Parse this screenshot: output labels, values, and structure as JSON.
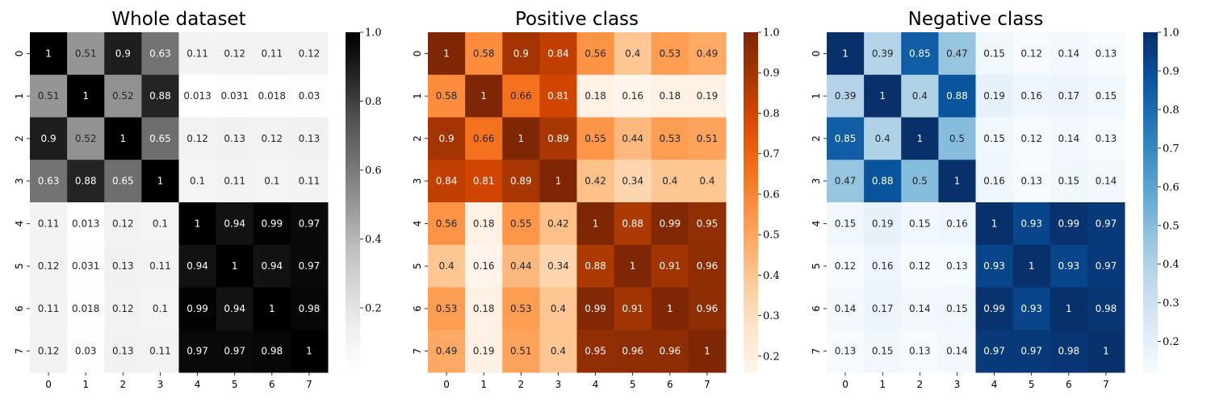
{
  "chart_data": [
    {
      "type": "heatmap",
      "title": "Whole dataset",
      "colormap": "Greys",
      "x_categories": [
        "0",
        "1",
        "2",
        "3",
        "4",
        "5",
        "6",
        "7"
      ],
      "y_categories": [
        "0",
        "1",
        "2",
        "3",
        "4",
        "5",
        "6",
        "7"
      ],
      "vmin": 0.013,
      "vmax": 1.0,
      "colorbar_ticks": [
        0.2,
        0.4,
        0.6,
        0.8,
        1.0
      ],
      "colorbar_tick_labels": [
        "0.2",
        "0.4",
        "0.6",
        "0.8",
        "1.0"
      ],
      "values": [
        [
          1,
          0.51,
          0.9,
          0.63,
          0.11,
          0.12,
          0.11,
          0.12
        ],
        [
          0.51,
          1,
          0.52,
          0.88,
          0.013,
          0.031,
          0.018,
          0.03
        ],
        [
          0.9,
          0.52,
          1,
          0.65,
          0.12,
          0.13,
          0.12,
          0.13
        ],
        [
          0.63,
          0.88,
          0.65,
          1,
          0.1,
          0.11,
          0.1,
          0.11
        ],
        [
          0.11,
          0.013,
          0.12,
          0.1,
          1,
          0.94,
          0.99,
          0.97
        ],
        [
          0.12,
          0.031,
          0.13,
          0.11,
          0.94,
          1,
          0.94,
          0.97
        ],
        [
          0.11,
          0.018,
          0.12,
          0.1,
          0.99,
          0.94,
          1,
          0.98
        ],
        [
          0.12,
          0.03,
          0.13,
          0.11,
          0.97,
          0.97,
          0.98,
          1
        ]
      ],
      "value_labels": [
        [
          "1",
          "0.51",
          "0.9",
          "0.63",
          "0.11",
          "0.12",
          "0.11",
          "0.12"
        ],
        [
          "0.51",
          "1",
          "0.52",
          "0.88",
          "0.013",
          "0.031",
          "0.018",
          "0.03"
        ],
        [
          "0.9",
          "0.52",
          "1",
          "0.65",
          "0.12",
          "0.13",
          "0.12",
          "0.13"
        ],
        [
          "0.63",
          "0.88",
          "0.65",
          "1",
          "0.1",
          "0.11",
          "0.1",
          "0.11"
        ],
        [
          "0.11",
          "0.013",
          "0.12",
          "0.1",
          "1",
          "0.94",
          "0.99",
          "0.97"
        ],
        [
          "0.12",
          "0.031",
          "0.13",
          "0.11",
          "0.94",
          "1",
          "0.94",
          "0.97"
        ],
        [
          "0.11",
          "0.018",
          "0.12",
          "0.1",
          "0.99",
          "0.94",
          "1",
          "0.98"
        ],
        [
          "0.12",
          "0.03",
          "0.13",
          "0.11",
          "0.97",
          "0.97",
          "0.98",
          "1"
        ]
      ]
    },
    {
      "type": "heatmap",
      "title": "Positive class",
      "colormap": "Oranges",
      "x_categories": [
        "0",
        "1",
        "2",
        "3",
        "4",
        "5",
        "6",
        "7"
      ],
      "y_categories": [
        "0",
        "1",
        "2",
        "3",
        "4",
        "5",
        "6",
        "7"
      ],
      "vmin": 0.16,
      "vmax": 1.0,
      "colorbar_ticks": [
        0.2,
        0.3,
        0.4,
        0.5,
        0.6,
        0.7,
        0.8,
        0.9,
        1.0
      ],
      "colorbar_tick_labels": [
        "0.2",
        "0.3",
        "0.4",
        "0.5",
        "0.6",
        "0.7",
        "0.8",
        "0.9",
        "1.0"
      ],
      "values": [
        [
          1,
          0.58,
          0.9,
          0.84,
          0.56,
          0.4,
          0.53,
          0.49
        ],
        [
          0.58,
          1,
          0.66,
          0.81,
          0.18,
          0.16,
          0.18,
          0.19
        ],
        [
          0.9,
          0.66,
          1,
          0.89,
          0.55,
          0.44,
          0.53,
          0.51
        ],
        [
          0.84,
          0.81,
          0.89,
          1,
          0.42,
          0.34,
          0.4,
          0.4
        ],
        [
          0.56,
          0.18,
          0.55,
          0.42,
          1,
          0.88,
          0.99,
          0.95
        ],
        [
          0.4,
          0.16,
          0.44,
          0.34,
          0.88,
          1,
          0.91,
          0.96
        ],
        [
          0.53,
          0.18,
          0.53,
          0.4,
          0.99,
          0.91,
          1,
          0.96
        ],
        [
          0.49,
          0.19,
          0.51,
          0.4,
          0.95,
          0.96,
          0.96,
          1
        ]
      ],
      "value_labels": [
        [
          "1",
          "0.58",
          "0.9",
          "0.84",
          "0.56",
          "0.4",
          "0.53",
          "0.49"
        ],
        [
          "0.58",
          "1",
          "0.66",
          "0.81",
          "0.18",
          "0.16",
          "0.18",
          "0.19"
        ],
        [
          "0.9",
          "0.66",
          "1",
          "0.89",
          "0.55",
          "0.44",
          "0.53",
          "0.51"
        ],
        [
          "0.84",
          "0.81",
          "0.89",
          "1",
          "0.42",
          "0.34",
          "0.4",
          "0.4"
        ],
        [
          "0.56",
          "0.18",
          "0.55",
          "0.42",
          "1",
          "0.88",
          "0.99",
          "0.95"
        ],
        [
          "0.4",
          "0.16",
          "0.44",
          "0.34",
          "0.88",
          "1",
          "0.91",
          "0.96"
        ],
        [
          "0.53",
          "0.18",
          "0.53",
          "0.4",
          "0.99",
          "0.91",
          "1",
          "0.96"
        ],
        [
          "0.49",
          "0.19",
          "0.51",
          "0.4",
          "0.95",
          "0.96",
          "0.96",
          "1"
        ]
      ]
    },
    {
      "type": "heatmap",
      "title": "Negative class",
      "colormap": "Blues",
      "x_categories": [
        "0",
        "1",
        "2",
        "3",
        "4",
        "5",
        "6",
        "7"
      ],
      "y_categories": [
        "0",
        "1",
        "2",
        "3",
        "4",
        "5",
        "6",
        "7"
      ],
      "vmin": 0.12,
      "vmax": 1.0,
      "colorbar_ticks": [
        0.2,
        0.3,
        0.4,
        0.5,
        0.6,
        0.7,
        0.8,
        0.9,
        1.0
      ],
      "colorbar_tick_labels": [
        "0.2",
        "0.3",
        "0.4",
        "0.5",
        "0.6",
        "0.7",
        "0.8",
        "0.9",
        "1.0"
      ],
      "values": [
        [
          1,
          0.39,
          0.85,
          0.47,
          0.15,
          0.12,
          0.14,
          0.13
        ],
        [
          0.39,
          1,
          0.4,
          0.88,
          0.19,
          0.16,
          0.17,
          0.15
        ],
        [
          0.85,
          0.4,
          1,
          0.5,
          0.15,
          0.12,
          0.14,
          0.13
        ],
        [
          0.47,
          0.88,
          0.5,
          1,
          0.16,
          0.13,
          0.15,
          0.14
        ],
        [
          0.15,
          0.19,
          0.15,
          0.16,
          1,
          0.93,
          0.99,
          0.97
        ],
        [
          0.12,
          0.16,
          0.12,
          0.13,
          0.93,
          1,
          0.93,
          0.97
        ],
        [
          0.14,
          0.17,
          0.14,
          0.15,
          0.99,
          0.93,
          1,
          0.98
        ],
        [
          0.13,
          0.15,
          0.13,
          0.14,
          0.97,
          0.97,
          0.98,
          1
        ]
      ],
      "value_labels": [
        [
          "1",
          "0.39",
          "0.85",
          "0.47",
          "0.15",
          "0.12",
          "0.14",
          "0.13"
        ],
        [
          "0.39",
          "1",
          "0.4",
          "0.88",
          "0.19",
          "0.16",
          "0.17",
          "0.15"
        ],
        [
          "0.85",
          "0.4",
          "1",
          "0.5",
          "0.15",
          "0.12",
          "0.14",
          "0.13"
        ],
        [
          "0.47",
          "0.88",
          "0.5",
          "1",
          "0.16",
          "0.13",
          "0.15",
          "0.14"
        ],
        [
          "0.15",
          "0.19",
          "0.15",
          "0.16",
          "1",
          "0.93",
          "0.99",
          "0.97"
        ],
        [
          "0.12",
          "0.16",
          "0.12",
          "0.13",
          "0.93",
          "1",
          "0.93",
          "0.97"
        ],
        [
          "0.14",
          "0.17",
          "0.14",
          "0.15",
          "0.99",
          "0.93",
          "1",
          "0.98"
        ],
        [
          "0.13",
          "0.15",
          "0.13",
          "0.14",
          "0.97",
          "0.97",
          "0.98",
          "1"
        ]
      ]
    }
  ]
}
